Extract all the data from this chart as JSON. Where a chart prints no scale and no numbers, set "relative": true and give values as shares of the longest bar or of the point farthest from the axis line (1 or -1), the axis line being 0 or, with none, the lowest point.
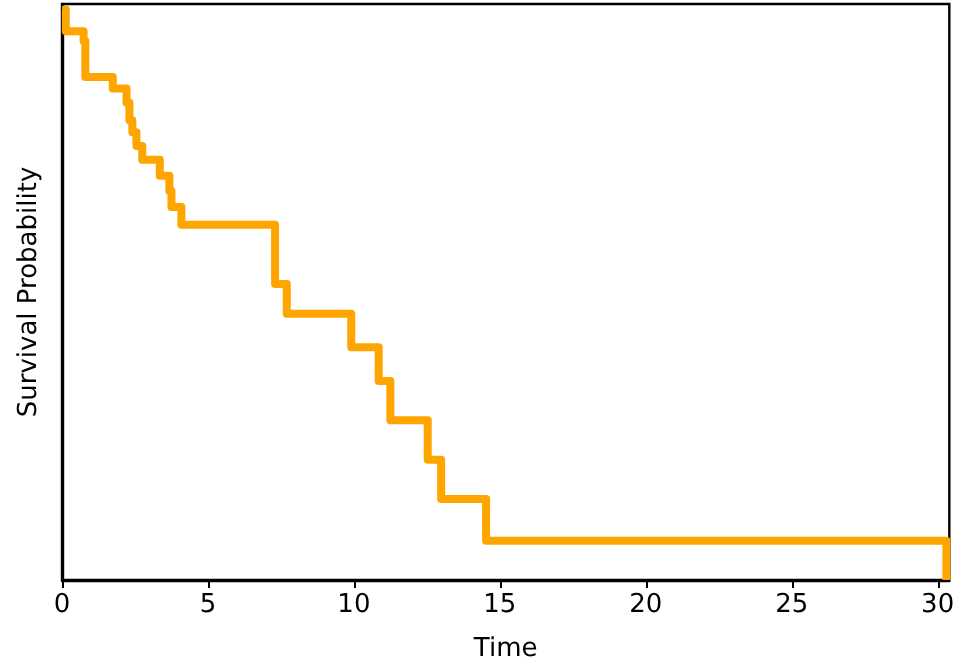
{
  "chart_data": {
    "type": "step",
    "xlabel": "Time",
    "ylabel": "Survival Probability",
    "relative": true,
    "xlim": [
      0,
      30.4
    ],
    "xticks": [
      0,
      5,
      10,
      15,
      20,
      25,
      30
    ],
    "grid": false,
    "marker": "none",
    "line_style": "solid",
    "series": [
      {
        "color": "#ffa500",
        "x": [
          0,
          0.13,
          0.74,
          0.8,
          1.74,
          2.21,
          2.31,
          2.41,
          2.55,
          2.75,
          3.35,
          3.68,
          3.75,
          4.09,
          7.3,
          7.7,
          9.91,
          10.85,
          11.25,
          12.53,
          12.99,
          14.53,
          30.3
        ],
        "values": [
          1,
          0.962,
          0.945,
          0.882,
          0.862,
          0.837,
          0.806,
          0.785,
          0.761,
          0.737,
          0.709,
          0.682,
          0.654,
          0.623,
          0.519,
          0.467,
          0.408,
          0.349,
          0.28,
          0.211,
          0.142,
          0.069,
          0
        ]
      }
    ]
  }
}
